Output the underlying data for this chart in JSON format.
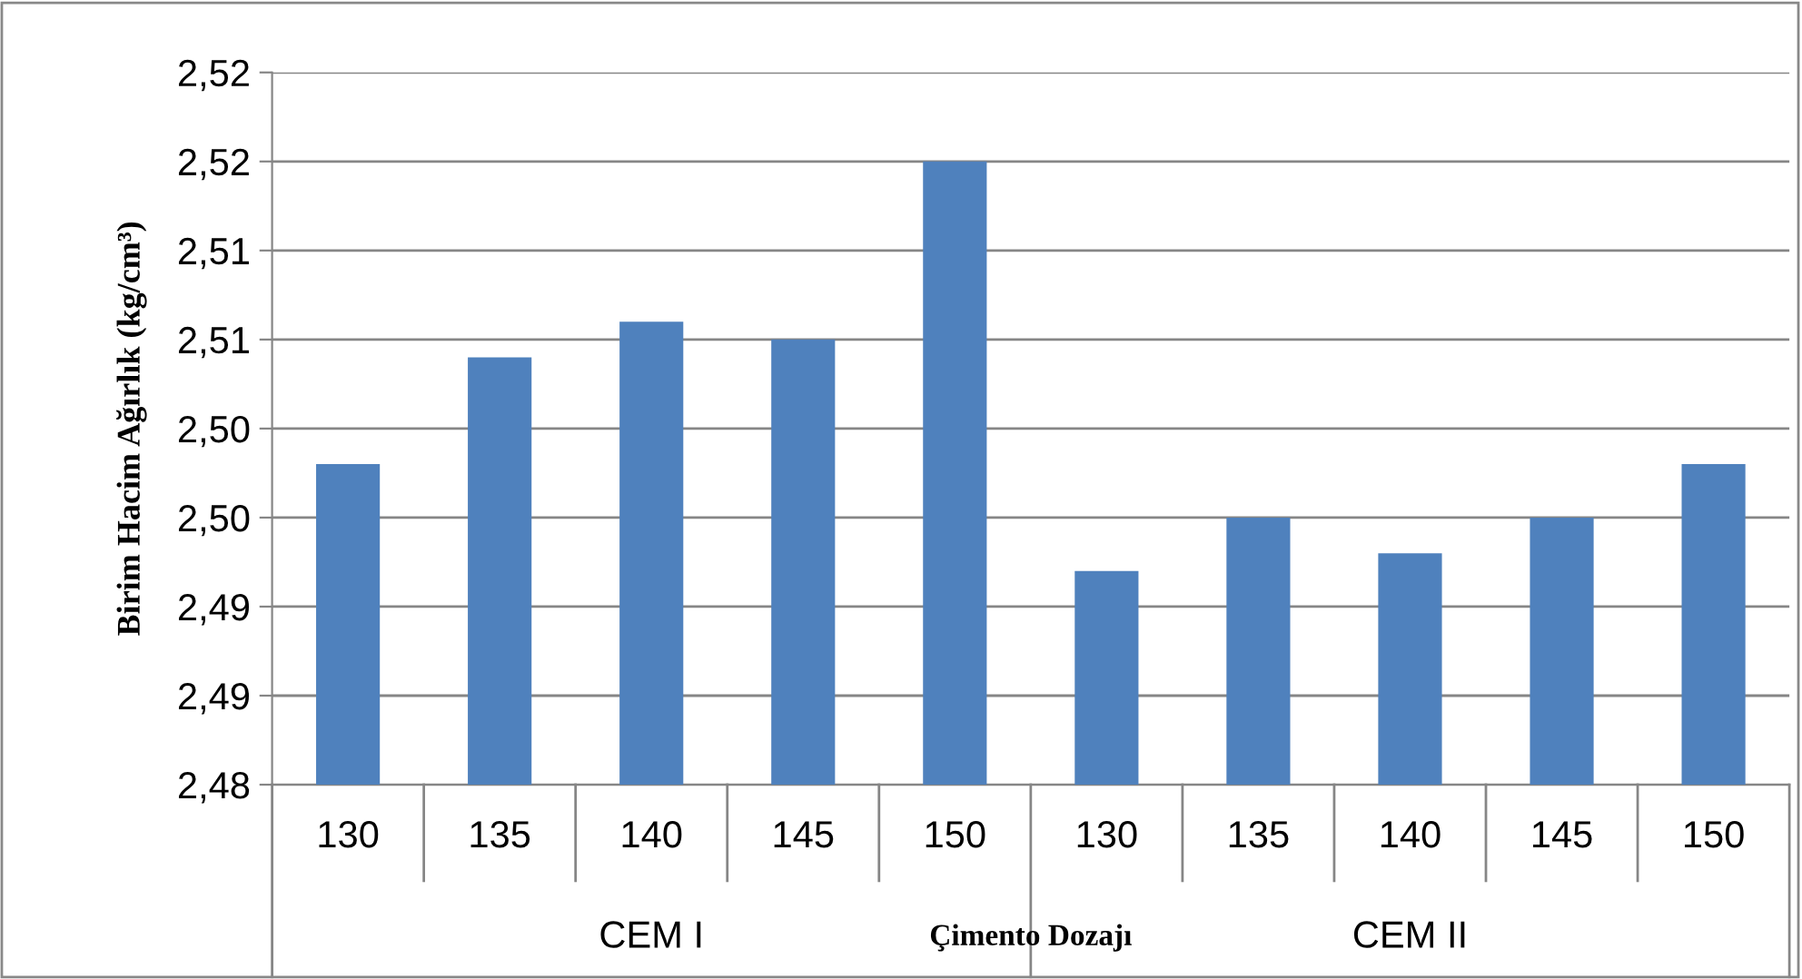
{
  "chart_data": {
    "type": "bar",
    "xlabel": "Çimento Dozajı",
    "ylabel": "Birim Hacim Ağırlık (kg/cm³)",
    "categories": [
      "130",
      "135",
      "140",
      "145",
      "150",
      "130",
      "135",
      "140",
      "145",
      "150"
    ],
    "values": [
      2.498,
      2.504,
      2.506,
      2.505,
      2.515,
      2.492,
      2.495,
      2.493,
      2.495,
      2.498
    ],
    "color": "#4f81bd",
    "ylim": [
      2.48,
      2.52
    ],
    "yticks": [
      {
        "value": 2.48,
        "label": "2,48"
      },
      {
        "value": 2.485,
        "label": "2,49"
      },
      {
        "value": 2.49,
        "label": "2,49"
      },
      {
        "value": 2.495,
        "label": "2,50"
      },
      {
        "value": 2.5,
        "label": "2,50"
      },
      {
        "value": 2.505,
        "label": "2,51"
      },
      {
        "value": 2.51,
        "label": "2,51"
      },
      {
        "value": 2.515,
        "label": "2,52"
      },
      {
        "value": 2.52,
        "label": "2,52"
      }
    ],
    "grid": "y",
    "annotations": [
      "CEM I",
      "CEM II"
    ]
  }
}
